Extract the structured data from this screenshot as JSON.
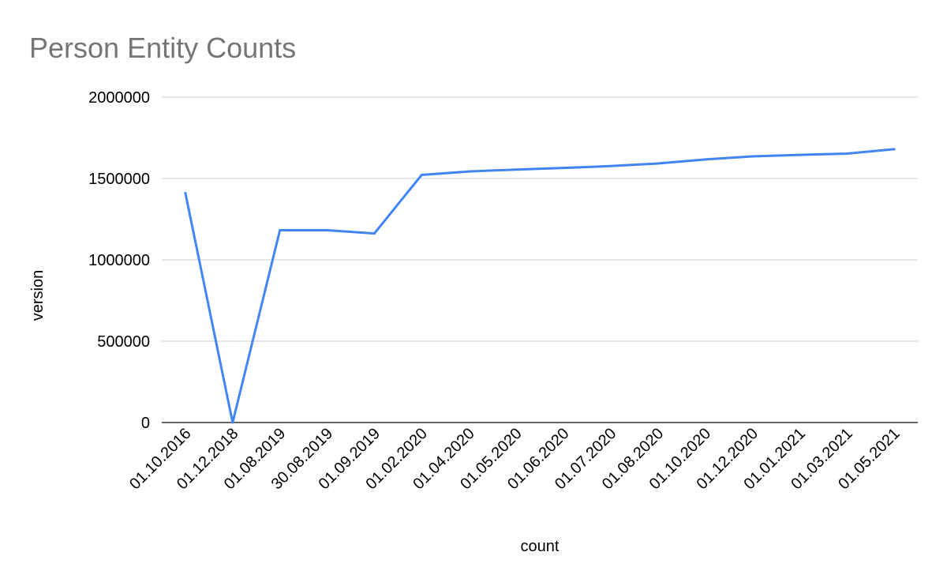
{
  "chart_data": {
    "type": "line",
    "title": "Person Entity Counts",
    "xlabel": "count",
    "ylabel": "version",
    "categories": [
      "01.10.2016",
      "01.12.2018",
      "01.08.2019",
      "30.08.2019",
      "01.09.2019",
      "01.02.2020",
      "01.04.2020",
      "01.05.2020",
      "01.06.2020",
      "01.07.2020",
      "01.08.2020",
      "01.10.2020",
      "01.12.2020",
      "01.01.2021",
      "01.03.2021",
      "01.05.2021"
    ],
    "series": [
      {
        "values": [
          1410000,
          0,
          1182000,
          1182000,
          1162000,
          1522000,
          1543000,
          1555000,
          1565000,
          1576000,
          1592000,
          1617000,
          1636000,
          1645000,
          1653000,
          1680000
        ]
      }
    ],
    "ylim": [
      0,
      2000000
    ],
    "yticks": [
      "0",
      "500000",
      "1000000",
      "1500000",
      "2000000"
    ],
    "grid": true,
    "legend": "none",
    "colors": {
      "line": "#4285f4",
      "grid": "#cccccc",
      "axis": "#333333",
      "title": "#757575"
    }
  }
}
